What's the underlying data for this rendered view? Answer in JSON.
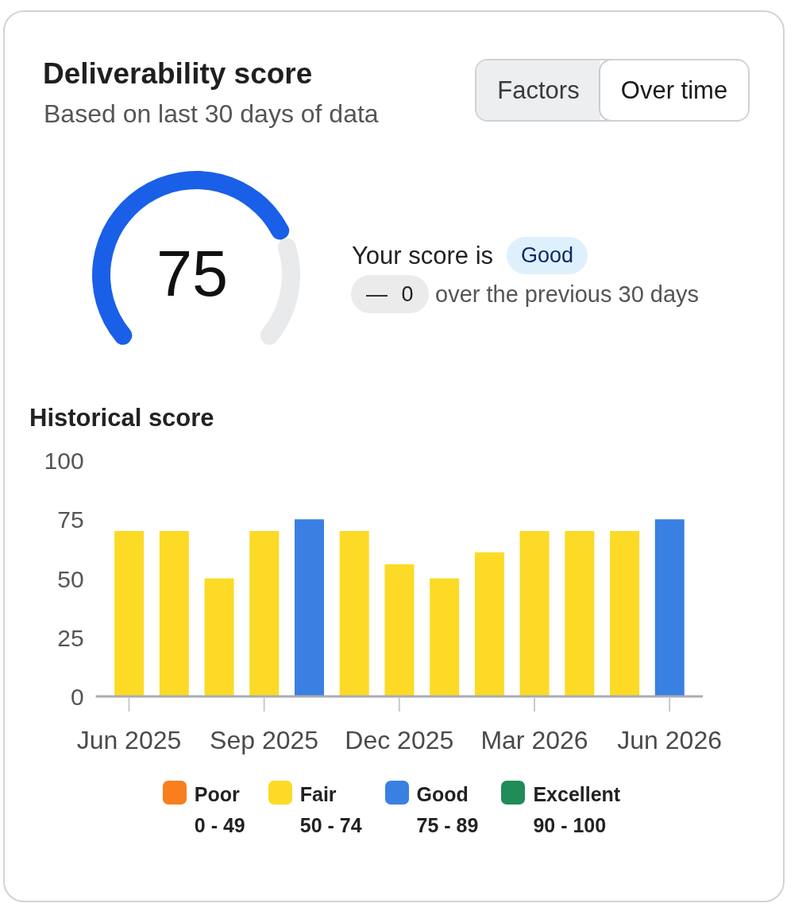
{
  "chart_data": [
    {
      "type": "donut",
      "title": "Deliverability score",
      "subtitle": "Based on last 30 days of data",
      "categories": [
        null,
        null
      ],
      "values": [
        75,
        25
      ],
      "colors": [
        "#1a5fe8",
        "#e9eaec"
      ],
      "value_labels": [
        "75",
        null
      ],
      "annotations": [
        "Factors",
        "Over time",
        "Your score is",
        "Good",
        "— 0",
        "over the previous 30 days"
      ]
    },
    {
      "type": "bar",
      "title": "Historical score",
      "categories": [
        "Jun 2025",
        null,
        null,
        "Sep 2025",
        null,
        null,
        "Dec 2025",
        null,
        null,
        "Mar 2026",
        null,
        null,
        "Jun 2026"
      ],
      "stacked": true,
      "series": [
        {
          "name": "Poor\n0 - 49",
          "color": "#f97e1e",
          "values": [
            null,
            null,
            null,
            null,
            null,
            null,
            null,
            null,
            null,
            null,
            null,
            null,
            null
          ]
        },
        {
          "name": "Fair\n50 - 74",
          "color": "#fcda25",
          "values": [
            70,
            70,
            50,
            70,
            null,
            70,
            56,
            50,
            61,
            70,
            70,
            70,
            null
          ]
        },
        {
          "name": "Good\n75 - 89",
          "color": "#3a80e2",
          "values": [
            null,
            null,
            null,
            null,
            75,
            null,
            null,
            null,
            null,
            null,
            null,
            null,
            75
          ]
        },
        {
          "name": "Excellent\n90 - 100",
          "color": "#208c57",
          "values": [
            null,
            null,
            null,
            null,
            null,
            null,
            null,
            null,
            null,
            null,
            null,
            null,
            null
          ]
        }
      ],
      "ylim": [
        0,
        100
      ],
      "yticks": [
        0,
        25,
        50,
        75,
        100
      ],
      "legend": "bottom"
    }
  ]
}
